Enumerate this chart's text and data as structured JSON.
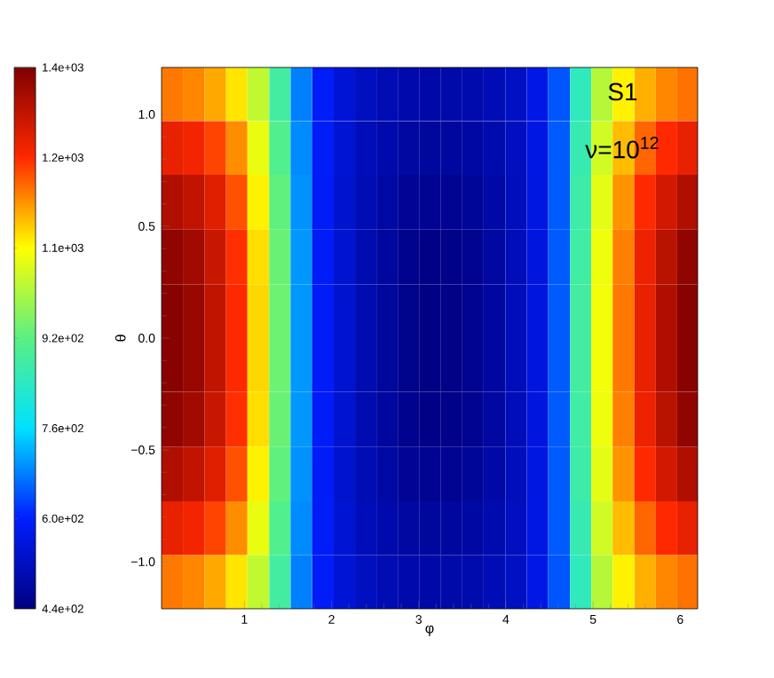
{
  "chart_data": {
    "type": "heatmap",
    "xlabel": "φ",
    "ylabel": "θ",
    "annotations": [
      "S1",
      "ν=10$^{12}$"
    ],
    "x": [
      0.17,
      0.42,
      0.67,
      0.91,
      1.16,
      1.41,
      1.65,
      1.9,
      2.15,
      2.39,
      2.64,
      2.88,
      3.13,
      3.38,
      3.62,
      3.87,
      4.12,
      4.36,
      4.61,
      4.86,
      5.1,
      5.35,
      5.6,
      5.84,
      6.09
    ],
    "y": [
      1.09,
      0.85,
      0.61,
      0.36,
      0.12,
      -0.12,
      -0.36,
      -0.61,
      -0.85,
      -1.09
    ],
    "cells": [
      [
        1180,
        1170,
        1145,
        1100,
        1020,
        880,
        680,
        590,
        548,
        520,
        505,
        495,
        490,
        492,
        497,
        508,
        525,
        568,
        645,
        845,
        1010,
        1090,
        1140,
        1170,
        1185
      ],
      [
        1270,
        1255,
        1220,
        1165,
        1060,
        905,
        690,
        590,
        545,
        512,
        495,
        482,
        476,
        478,
        484,
        498,
        520,
        565,
        650,
        860,
        1035,
        1130,
        1195,
        1240,
        1270
      ],
      [
        1340,
        1320,
        1280,
        1210,
        1090,
        925,
        695,
        590,
        540,
        505,
        485,
        468,
        460,
        462,
        470,
        488,
        515,
        562,
        650,
        870,
        1055,
        1160,
        1240,
        1300,
        1340
      ],
      [
        1380,
        1360,
        1310,
        1235,
        1105,
        935,
        700,
        590,
        540,
        500,
        478,
        458,
        448,
        452,
        462,
        482,
        512,
        560,
        650,
        875,
        1065,
        1175,
        1265,
        1330,
        1380
      ],
      [
        1390,
        1370,
        1320,
        1240,
        1110,
        940,
        700,
        590,
        540,
        500,
        475,
        455,
        445,
        450,
        460,
        480,
        510,
        560,
        650,
        880,
        1070,
        1180,
        1270,
        1340,
        1390
      ],
      [
        1390,
        1370,
        1320,
        1240,
        1110,
        940,
        700,
        590,
        540,
        500,
        475,
        455,
        445,
        450,
        460,
        480,
        510,
        560,
        650,
        880,
        1070,
        1180,
        1270,
        1340,
        1390
      ],
      [
        1380,
        1360,
        1310,
        1235,
        1105,
        935,
        700,
        590,
        540,
        500,
        478,
        458,
        448,
        452,
        462,
        482,
        512,
        560,
        650,
        875,
        1065,
        1175,
        1265,
        1330,
        1380
      ],
      [
        1340,
        1320,
        1280,
        1210,
        1090,
        925,
        695,
        590,
        540,
        505,
        485,
        468,
        460,
        462,
        470,
        488,
        515,
        562,
        650,
        870,
        1055,
        1160,
        1240,
        1300,
        1340
      ],
      [
        1270,
        1255,
        1220,
        1165,
        1060,
        905,
        690,
        590,
        545,
        512,
        495,
        482,
        476,
        478,
        484,
        498,
        520,
        565,
        650,
        860,
        1035,
        1130,
        1195,
        1240,
        1270
      ],
      [
        1180,
        1170,
        1145,
        1100,
        1020,
        880,
        680,
        590,
        548,
        520,
        505,
        495,
        490,
        492,
        497,
        508,
        525,
        568,
        645,
        845,
        1010,
        1090,
        1140,
        1170,
        1185
      ]
    ],
    "xlim": [
      0.05,
      6.2
    ],
    "ylim": [
      -1.21,
      1.21
    ],
    "xticks": [
      1,
      2,
      3,
      4,
      5,
      6
    ],
    "yticks": [
      {
        "value": -1.0,
        "label": "−1.0"
      },
      {
        "value": -0.5,
        "label": "−0.5"
      },
      {
        "value": 0.0,
        "label": "0.0"
      },
      {
        "value": 0.5,
        "label": "0.5"
      },
      {
        "value": 1.0,
        "label": "1.0"
      }
    ],
    "clim": [
      440,
      1400
    ],
    "cticks": [
      {
        "value": 440,
        "label": "4.4e+02"
      },
      {
        "value": 600,
        "label": "6.0e+02"
      },
      {
        "value": 760,
        "label": "7.6e+02"
      },
      {
        "value": 920,
        "label": "9.2e+02"
      },
      {
        "value": 1080,
        "label": "1.1e+03"
      },
      {
        "value": 1240,
        "label": "1.2e+03"
      },
      {
        "value": 1400,
        "label": "1.4e+03"
      }
    ]
  }
}
